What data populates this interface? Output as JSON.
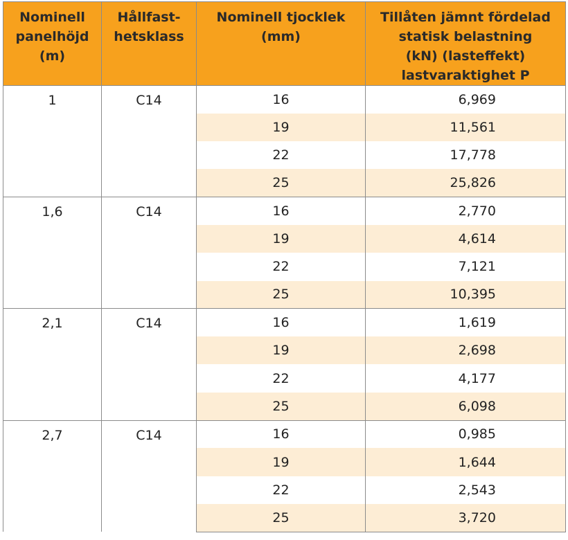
{
  "headers": {
    "c1": "Nominell\npanelhöjd\n(m)",
    "c2": "Hållfast-\nhetsklass",
    "c3": "Nominell tjocklek\n(mm)",
    "c4": "Tillåten jämnt fördelad\nstatisk belastning\n(kN) (lasteffekt)\nlastvaraktighet P"
  },
  "groups": [
    {
      "height": "1",
      "class": "C14",
      "rows": [
        {
          "thickness": "16",
          "load": "6,969"
        },
        {
          "thickness": "19",
          "load": "11,561"
        },
        {
          "thickness": "22",
          "load": "17,778"
        },
        {
          "thickness": "25",
          "load": "25,826"
        }
      ]
    },
    {
      "height": "1,6",
      "class": "C14",
      "rows": [
        {
          "thickness": "16",
          "load": "2,770"
        },
        {
          "thickness": "19",
          "load": "4,614"
        },
        {
          "thickness": "22",
          "load": "7,121"
        },
        {
          "thickness": "25",
          "load": "10,395"
        }
      ]
    },
    {
      "height": "2,1",
      "class": "C14",
      "rows": [
        {
          "thickness": "16",
          "load": "1,619"
        },
        {
          "thickness": "19",
          "load": "2,698"
        },
        {
          "thickness": "22",
          "load": "4,177"
        },
        {
          "thickness": "25",
          "load": "6,098"
        }
      ]
    },
    {
      "height": "2,7",
      "class": "C14",
      "rows": [
        {
          "thickness": "16",
          "load": "0,985"
        },
        {
          "thickness": "19",
          "load": "1,644"
        },
        {
          "thickness": "22",
          "load": "2,543"
        },
        {
          "thickness": "25",
          "load": "3,720"
        }
      ]
    }
  ],
  "colors": {
    "header_bg": "#f7a11d",
    "row_shade": "#fdedd5",
    "border": "#8a8a8a"
  }
}
